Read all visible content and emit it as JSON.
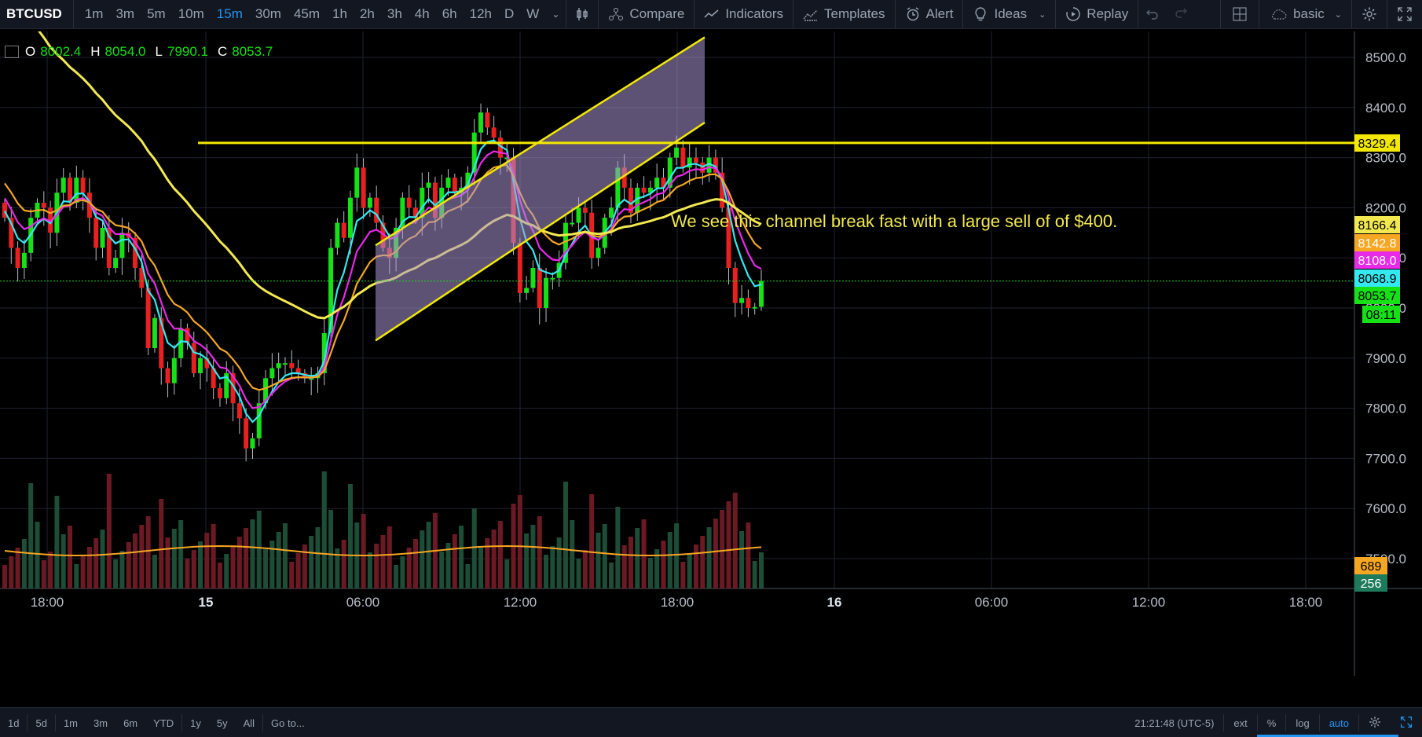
{
  "toolbar": {
    "symbol": "BTCUSD",
    "intervals": [
      "1m",
      "3m",
      "5m",
      "10m",
      "15m",
      "30m",
      "45m",
      "1h",
      "2h",
      "3h",
      "4h",
      "6h",
      "12h",
      "D",
      "W"
    ],
    "active_interval": "15m",
    "compare": "Compare",
    "indicators": "Indicators",
    "templates": "Templates",
    "alert": "Alert",
    "ideas": "Ideas",
    "replay": "Replay",
    "layout": "basic"
  },
  "ohlc": {
    "o_label": "O",
    "o": "8002.4",
    "h_label": "H",
    "h": "8054.0",
    "l_label": "L",
    "l": "7990.1",
    "c_label": "C",
    "c": "8053.7"
  },
  "annotation": "We see this channel break fast with a large sell of of $400.",
  "bottom": {
    "ranges": [
      "1d",
      "5d",
      "1m",
      "3m",
      "6m",
      "YTD",
      "1y",
      "5y",
      "All"
    ],
    "goto": "Go to...",
    "clock": "21:21:48 (UTC-5)",
    "ext": "ext",
    "pct": "%",
    "log": "log",
    "auto": "auto"
  },
  "colors": {
    "up": "#16e016",
    "down": "#e8201f",
    "vol_up": "#1d4d36",
    "vol_down": "#6b1a24",
    "ema_cyan": "#34e8f0",
    "ema_magenta": "#e829e8",
    "ema_orange": "#f5a623",
    "ema_yellow": "#f2e84f",
    "hline": "#f2e800",
    "grid": "#1f2330"
  },
  "chart_data": {
    "type": "candlestick",
    "symbol": "BTCUSD",
    "interval": "15m",
    "y_axis": {
      "ticks": [
        8500,
        8400,
        8300,
        8200,
        8100,
        8000,
        7900,
        7800,
        7700,
        7600,
        7500
      ],
      "ylim": [
        7450,
        8540
      ]
    },
    "x_axis": {
      "ticks": [
        "18:00",
        "15",
        "06:00",
        "12:00",
        "18:00",
        "16",
        "06:00",
        "12:00",
        "18:00"
      ]
    },
    "candles_close": [
      8180,
      8120,
      8080,
      8110,
      8180,
      8210,
      8200,
      8150,
      8230,
      8260,
      8210,
      8260,
      8230,
      8180,
      8120,
      8160,
      8080,
      8100,
      8150,
      8140,
      8080,
      8040,
      7920,
      7980,
      7880,
      7850,
      7900,
      7960,
      7930,
      7870,
      7900,
      7880,
      7840,
      7820,
      7870,
      7810,
      7780,
      7720,
      7740,
      7810,
      7860,
      7880,
      7890,
      7890,
      7880,
      7870,
      7860,
      7860,
      7870,
      7950,
      8120,
      8170,
      8140,
      8220,
      8280,
      8200,
      8220,
      8170,
      8120,
      8100,
      8160,
      8220,
      8200,
      8180,
      8240,
      8250,
      8180,
      8240,
      8260,
      8230,
      8240,
      8270,
      8350,
      8390,
      8360,
      8340,
      8300,
      8300,
      8130,
      8030,
      8040,
      8080,
      8000,
      8060,
      8060,
      8090,
      8170,
      8170,
      8200,
      8190,
      8100,
      8120,
      8180,
      8200,
      8280,
      8240,
      8190,
      8240,
      8230,
      8240,
      8260,
      8240,
      8300,
      8320,
      8280,
      8300,
      8290,
      8270,
      8300,
      8270,
      8200,
      8080,
      8010,
      8020,
      8000,
      8002,
      8054
    ],
    "price_labels": [
      {
        "value": "8329.4",
        "color": "#f2e800",
        "text_color": "#000"
      },
      {
        "value": "8166.4",
        "color": "#f2e84f",
        "text_color": "#000"
      },
      {
        "value": "8142.8",
        "color": "#f5a623",
        "text_color": "#fff"
      },
      {
        "value": "8108.0",
        "color": "#e829e8",
        "text_color": "#fff"
      },
      {
        "value": "8068.9",
        "color": "#34e8f0",
        "text_color": "#000"
      },
      {
        "value": "8053.7",
        "color": "#16e016",
        "text_color": "#000"
      },
      {
        "value": "08:11",
        "color": "#16e016",
        "text_color": "#000"
      }
    ],
    "volume_labels": [
      {
        "value": "689",
        "color": "#f5a623",
        "text_color": "#000"
      },
      {
        "value": "256",
        "color": "#1d7a5a",
        "text_color": "#fff"
      }
    ],
    "horizontal_line": 8329.4,
    "channel": {
      "lower_start": [
        0,
        7935
      ],
      "lower_end": [
        1,
        8370
      ],
      "upper_start": [
        0,
        8125
      ],
      "upper_end": [
        1,
        8540
      ]
    }
  }
}
